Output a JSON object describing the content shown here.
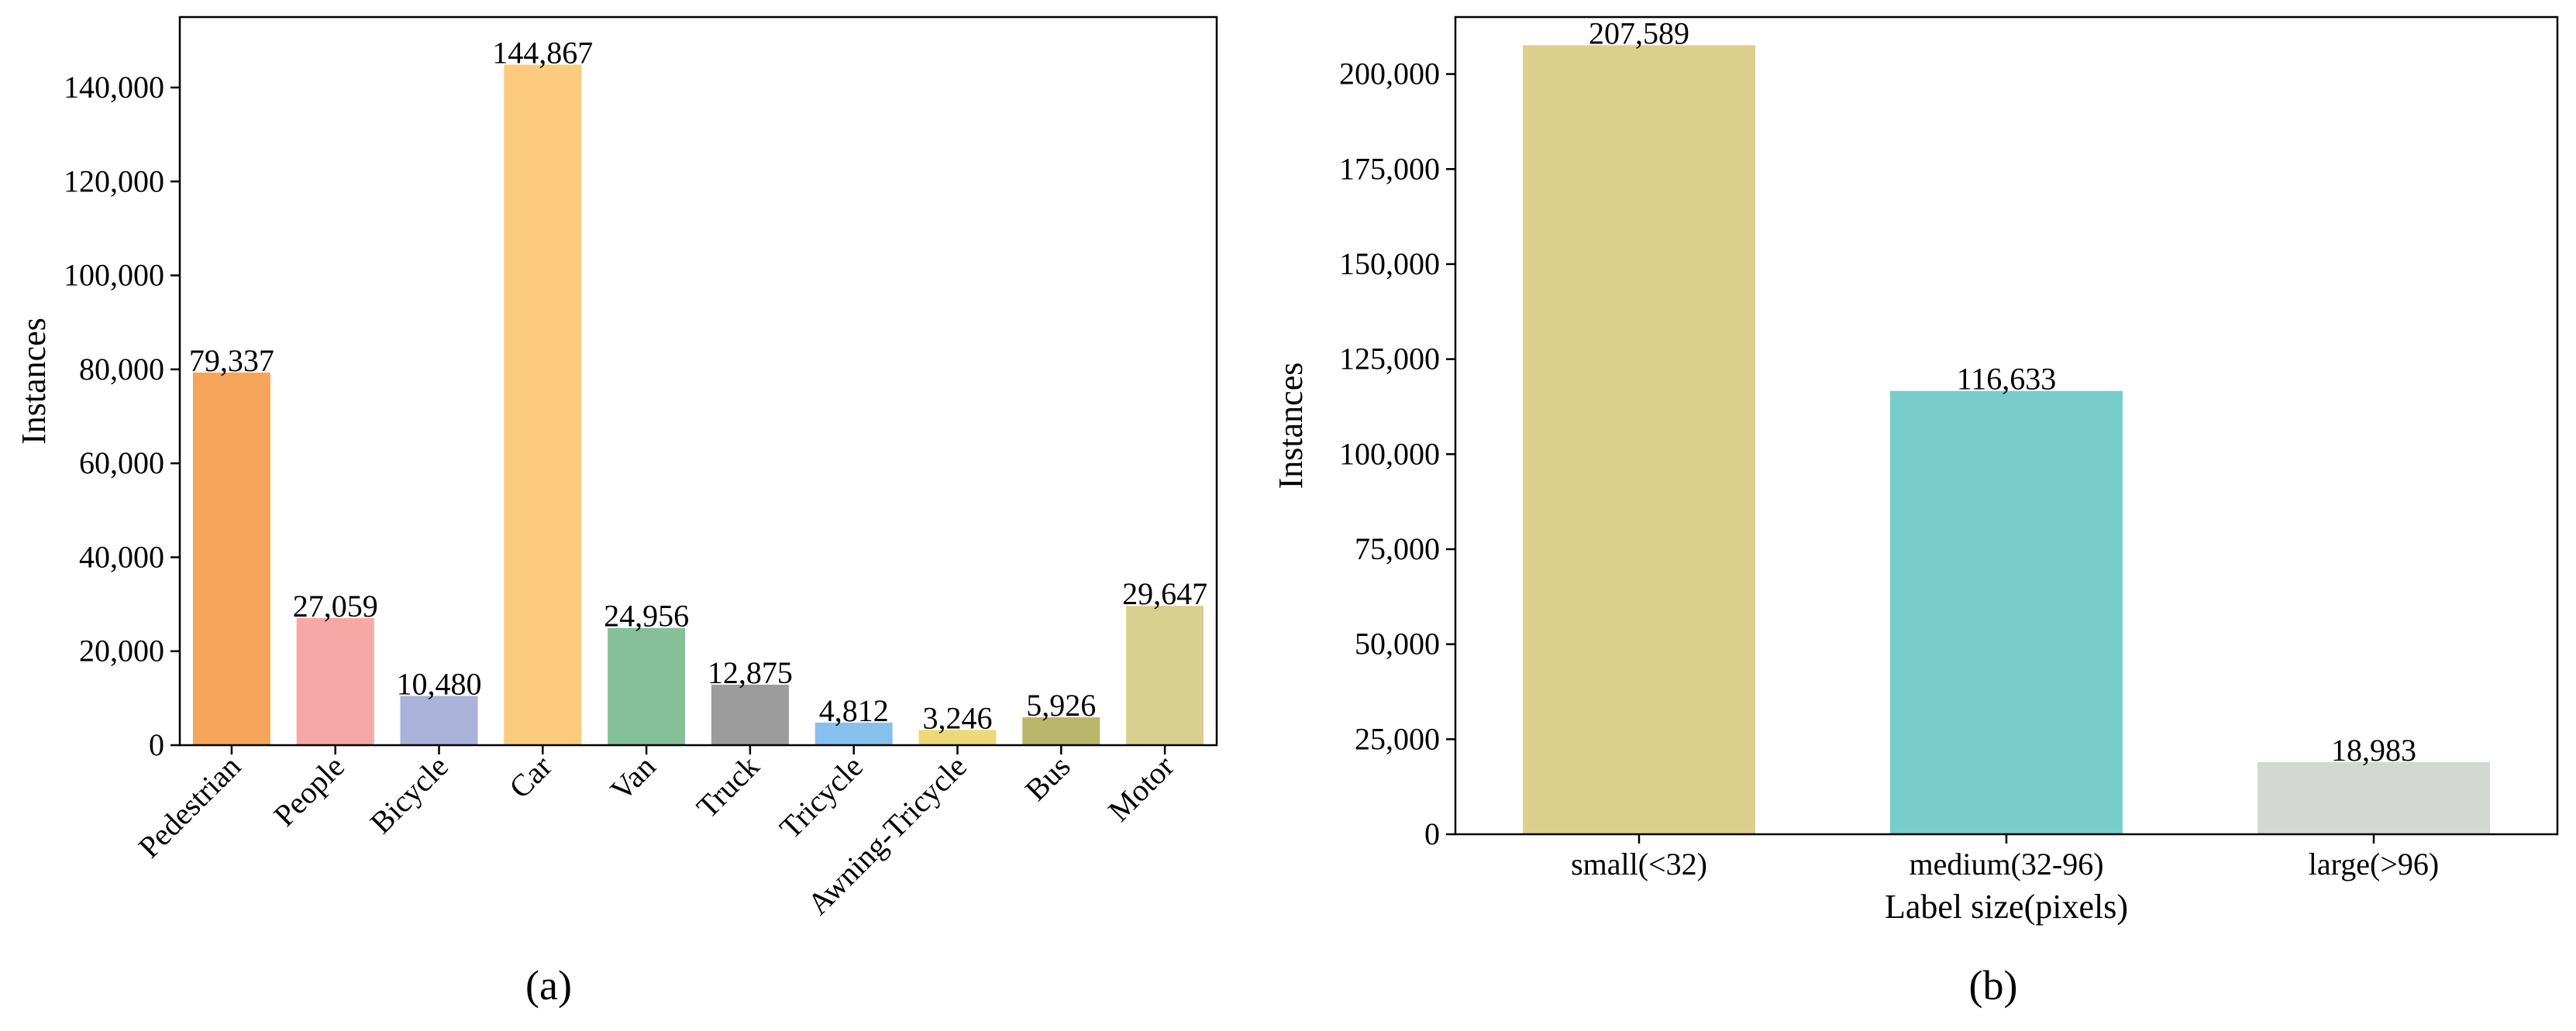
{
  "chart_data": [
    {
      "type": "bar",
      "caption": "(a)",
      "title": "",
      "xlabel": "",
      "ylabel": "Instances",
      "ylim": [
        0,
        155000
      ],
      "yticks": [
        0,
        20000,
        40000,
        60000,
        80000,
        100000,
        120000,
        140000
      ],
      "ytick_labels": [
        "0",
        "20,000",
        "40,000",
        "60,000",
        "80,000",
        "100,000",
        "120,000",
        "140,000"
      ],
      "categories": [
        "Pedestrian",
        "People",
        "Bicycle",
        "Car",
        "Van",
        "Truck",
        "Tricycle",
        "Awning-Tricycle",
        "Bus",
        "Motor"
      ],
      "values": [
        79337,
        27059,
        10480,
        144867,
        24956,
        12875,
        4812,
        3246,
        5926,
        29647
      ],
      "value_labels": [
        "79,337",
        "27,059",
        "10,480",
        "144,867",
        "24,956",
        "12,875",
        "4,812",
        "3,246",
        "5,926",
        "29,647"
      ],
      "colors": [
        "#f5a55a",
        "#f5a8a5",
        "#aab2da",
        "#fdcb7e",
        "#86c099",
        "#9c9c9c",
        "#86c1ee",
        "#eed97a",
        "#b8b76c",
        "#d9cf8f"
      ],
      "grid": false
    },
    {
      "type": "bar",
      "caption": "(b)",
      "title": "",
      "xlabel": "Label size(pixels)",
      "ylabel": "Instances",
      "ylim": [
        0,
        215000
      ],
      "yticks": [
        0,
        25000,
        50000,
        75000,
        100000,
        125000,
        150000,
        175000,
        200000
      ],
      "ytick_labels": [
        "0",
        "25,000",
        "50,000",
        "75,000",
        "100,000",
        "125,000",
        "150,000",
        "175,000",
        "200,000"
      ],
      "categories": [
        "small(<32)",
        "medium(32-96)",
        "large(>96)"
      ],
      "values": [
        207589,
        116633,
        18983
      ],
      "value_labels": [
        "207,589",
        "116,633",
        "18,983"
      ],
      "colors": [
        "#dccf8e",
        "#78cccc",
        "#d3d8d3"
      ],
      "grid": false
    }
  ]
}
